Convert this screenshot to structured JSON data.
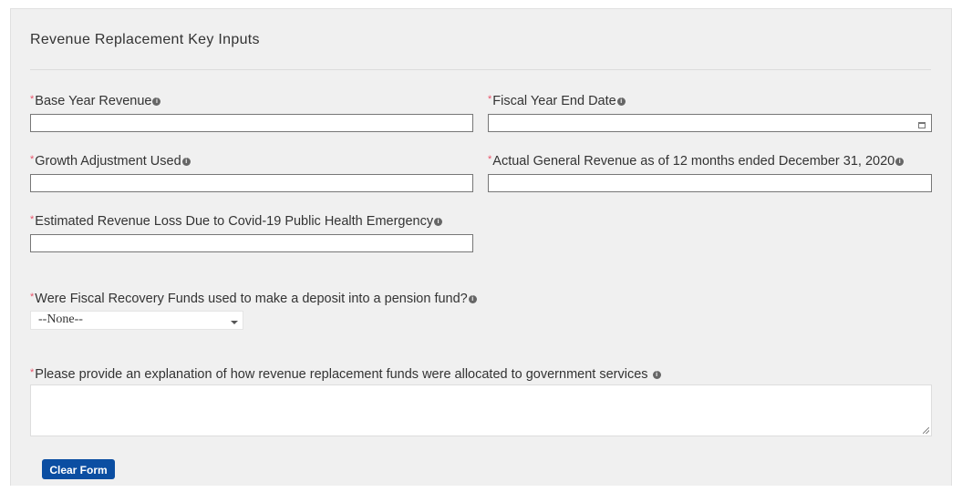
{
  "section": {
    "title": "Revenue Replacement Key Inputs"
  },
  "fields": [
    {
      "label": "Base Year Revenue",
      "value": ""
    },
    {
      "label": "Fiscal Year End Date",
      "value": ""
    },
    {
      "label": "Growth Adjustment Used",
      "value": ""
    },
    {
      "label": "Actual General Revenue as of 12 months ended December 31, 2020",
      "value": ""
    },
    {
      "label": "Estimated Revenue Loss Due to Covid-19 Public Health Emergency",
      "value": ""
    },
    {
      "label": "Were Fiscal Recovery Funds used to make a deposit into a pension fund?",
      "value": "--None--"
    },
    {
      "label": "Please provide an explanation of how revenue replacement funds were allocated to government services",
      "value": ""
    }
  ],
  "required_marker": "*",
  "info_icon": "i",
  "buttons": {
    "clear": "Clear Form"
  },
  "colors": {
    "required": "#e8546b",
    "button": "#0b4ea2",
    "panel": "#f0f0f0"
  }
}
